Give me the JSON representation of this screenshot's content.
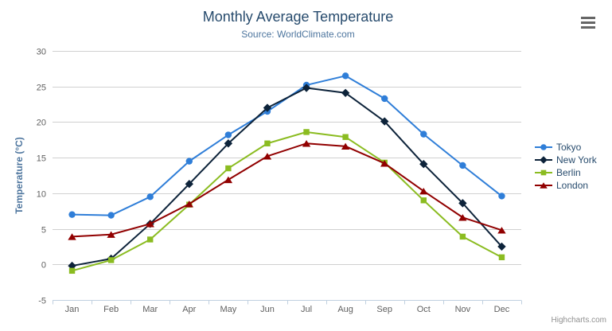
{
  "chart": {
    "title": "Monthly Average Temperature",
    "subtitle": "Source: WorldClimate.com",
    "credits": "Highcharts.com",
    "export_icon": "hamburger-menu-icon"
  },
  "chart_data": {
    "type": "line",
    "title": "Monthly Average Temperature",
    "subtitle": "Source: WorldClimate.com",
    "categories": [
      "Jan",
      "Feb",
      "Mar",
      "Apr",
      "May",
      "Jun",
      "Jul",
      "Aug",
      "Sep",
      "Oct",
      "Nov",
      "Dec"
    ],
    "series": [
      {
        "name": "Tokyo",
        "color": "#2f7ed8",
        "marker": "circle",
        "values": [
          7.0,
          6.9,
          9.5,
          14.5,
          18.2,
          21.5,
          25.2,
          26.5,
          23.3,
          18.3,
          13.9,
          9.6
        ]
      },
      {
        "name": "New York",
        "color": "#0d233a",
        "marker": "diamond",
        "values": [
          -0.2,
          0.8,
          5.7,
          11.3,
          17.0,
          22.0,
          24.8,
          24.1,
          20.1,
          14.1,
          8.6,
          2.5
        ]
      },
      {
        "name": "Berlin",
        "color": "#8bbc21",
        "marker": "square",
        "values": [
          -0.9,
          0.6,
          3.5,
          8.4,
          13.5,
          17.0,
          18.6,
          17.9,
          14.3,
          9.0,
          3.9,
          1.0
        ]
      },
      {
        "name": "London",
        "color": "#910000",
        "marker": "triangle",
        "values": [
          3.9,
          4.2,
          5.7,
          8.5,
          11.9,
          15.2,
          17.0,
          16.6,
          14.2,
          10.3,
          6.6,
          4.8
        ]
      }
    ],
    "xlabel": "",
    "ylabel": "Temperature (°C)",
    "ylim": [
      -5,
      30
    ],
    "yticks": [
      -5,
      0,
      5,
      10,
      15,
      20,
      25,
      30
    ],
    "grid": true,
    "legend_position": "right"
  },
  "colors": {
    "title": "#274b6d",
    "subtitle": "#4d759e",
    "axis_labels": "#606060",
    "axis_title": "#4d759e",
    "gridline": "#d0d0d0",
    "axis_line": "#c0d0e0",
    "legend_text": "#274b6d",
    "credits": "#909090"
  }
}
